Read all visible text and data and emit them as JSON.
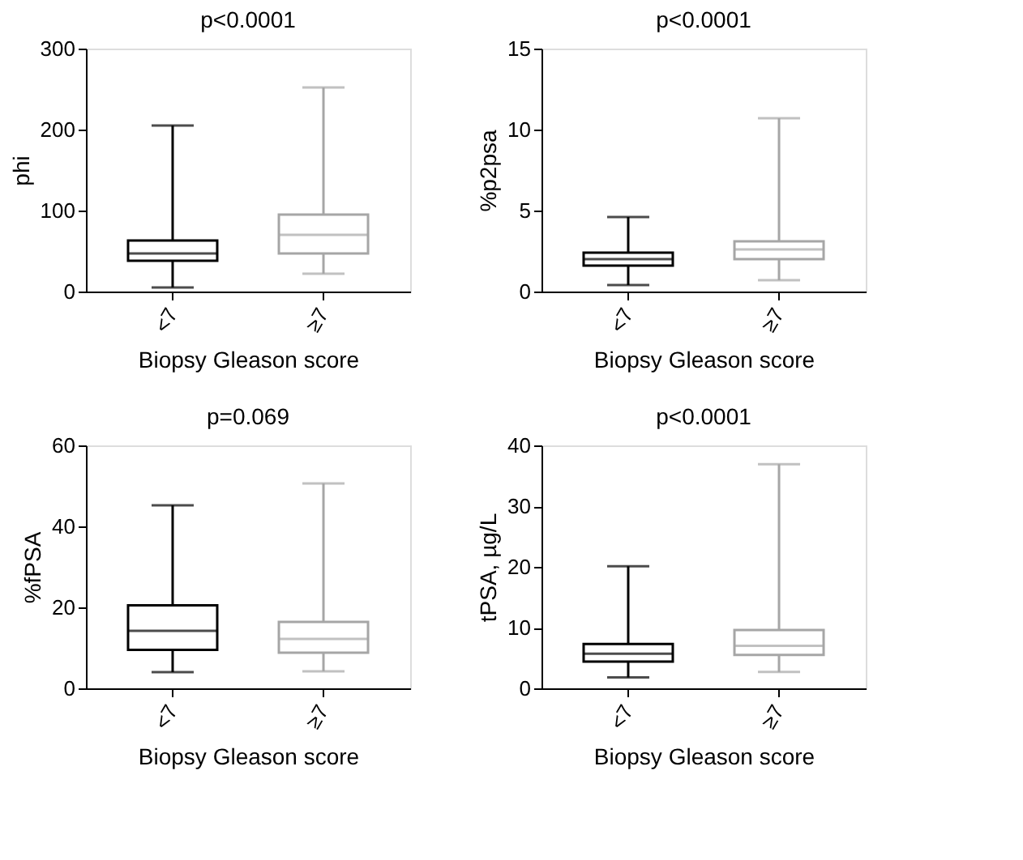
{
  "chart_data": [
    {
      "type": "box",
      "title": "p<0.0001",
      "xlabel": "Biopsy Gleason score",
      "ylabel": "phi",
      "categories": [
        "<7",
        "≥7"
      ],
      "colors": [
        "#000000",
        "#a6a6a6"
      ],
      "ylim": [
        0,
        300
      ],
      "yticks": [
        0,
        100,
        200,
        300
      ],
      "boxes": [
        {
          "low": 5,
          "q1": 38,
          "median": 47,
          "q3": 63,
          "high": 205
        },
        {
          "low": 22,
          "q1": 47,
          "median": 70,
          "q3": 95,
          "high": 252
        }
      ]
    },
    {
      "type": "box",
      "title": "p<0.0001",
      "xlabel": "Biopsy Gleason score",
      "ylabel": "%p2psa",
      "categories": [
        "<7",
        "≥7"
      ],
      "colors": [
        "#000000",
        "#a6a6a6"
      ],
      "ylim": [
        0,
        15
      ],
      "yticks": [
        0,
        5,
        10,
        15
      ],
      "boxes": [
        {
          "low": 0.4,
          "q1": 1.6,
          "median": 2.0,
          "q3": 2.4,
          "high": 4.6
        },
        {
          "low": 0.7,
          "q1": 2.0,
          "median": 2.6,
          "q3": 3.1,
          "high": 10.7
        }
      ]
    },
    {
      "type": "box",
      "title": "p=0.069",
      "xlabel": "Biopsy Gleason score",
      "ylabel": "%fPSA",
      "categories": [
        "<7",
        "≥7"
      ],
      "colors": [
        "#000000",
        "#a6a6a6"
      ],
      "ylim": [
        0,
        60
      ],
      "yticks": [
        0,
        20,
        40,
        60
      ],
      "boxes": [
        {
          "low": 4,
          "q1": 9.5,
          "median": 14.2,
          "q3": 20.5,
          "high": 45.2
        },
        {
          "low": 4.2,
          "q1": 8.8,
          "median": 12.2,
          "q3": 16.4,
          "high": 50.6
        }
      ]
    },
    {
      "type": "box",
      "title": "p<0.0001",
      "xlabel": "Biopsy Gleason score",
      "ylabel": "tPSA, µg/L",
      "categories": [
        "<7",
        "≥7"
      ],
      "colors": [
        "#000000",
        "#a6a6a6"
      ],
      "ylim": [
        0,
        40
      ],
      "yticks": [
        0,
        10,
        20,
        30,
        40
      ],
      "boxes": [
        {
          "low": 1.8,
          "q1": 4.4,
          "median": 5.7,
          "q3": 7.3,
          "high": 20.1
        },
        {
          "low": 2.7,
          "q1": 5.5,
          "median": 7.0,
          "q3": 9.6,
          "high": 36.9
        }
      ]
    }
  ]
}
